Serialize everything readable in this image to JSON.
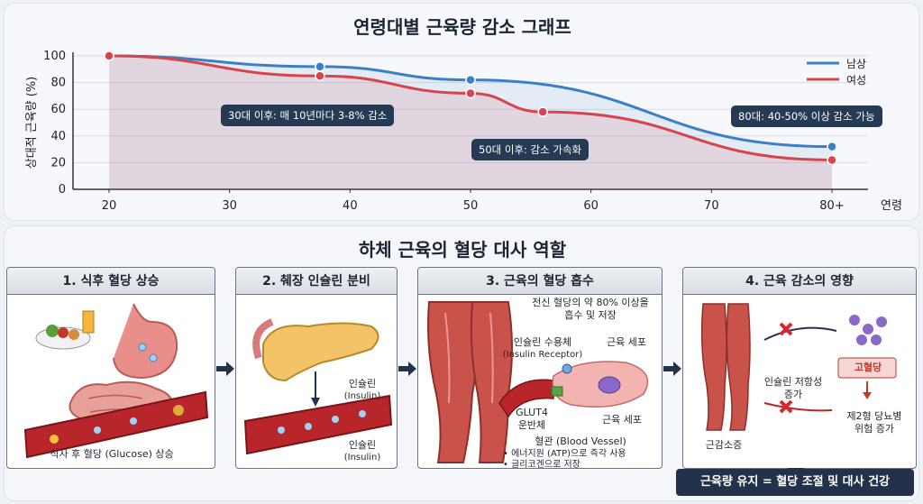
{
  "chart_data": {
    "type": "line",
    "title": "연령대별 근육량 감소 그래프",
    "xlabel": "연령",
    "ylabel": "상대적 근육량 (%)",
    "x_ticks": [
      "20",
      "30",
      "40",
      "50",
      "60",
      "70",
      "80+"
    ],
    "y_ticks": [
      "0",
      "20",
      "40",
      "60",
      "80",
      "100"
    ],
    "ylim": [
      0,
      100
    ],
    "legend_position": "top-right",
    "series": [
      {
        "name": "남상",
        "color": "#3a7fc8",
        "x": [
          20,
          37.5,
          50,
          80
        ],
        "y": [
          100,
          92,
          82,
          32
        ]
      },
      {
        "name": "여성",
        "color": "#d9434b",
        "x": [
          20,
          37.5,
          50,
          56,
          80
        ],
        "y": [
          100,
          85,
          72,
          58,
          22
        ]
      }
    ],
    "annotations": [
      "30대 이후: 매 10년마다 3-8% 감소",
      "50대 이후: 감소 가속화",
      "80대: 40-50% 이상 감소 가능"
    ]
  },
  "section_title": "하체 근육의 혈당 대사 역할",
  "panels": [
    {
      "title": "1. 식후 혈당 상승",
      "caption": "식사 후 혈당 (Glucose) 상승"
    },
    {
      "title": "2. 췌장 인슐린 분비",
      "label_a1": "인슐린",
      "label_a2": "(Insulin)",
      "label_b1": "인슐린",
      "label_b2": "(Insulin)"
    },
    {
      "title": "3. 근육의 혈당 흡수",
      "note1": "전신 혈당의 약 80% 이상을",
      "note2": "흡수 및 저장",
      "receptor": "인슐린 수용체",
      "receptor_en": "(Insulin Receptor)",
      "cell_top": "근육 세포",
      "glut1": "GLUT4",
      "glut2": "운반체",
      "cell_bottom": "근육 세포",
      "vessel": "혈관  (Blood Vessel)",
      "bullet1": "• 에너지원 (ATP)으로 즉각 사용",
      "bullet2": "• 글리코겐으로 저장"
    },
    {
      "title": "4. 근육 감소의 영향",
      "resist1": "인슐린 저항성",
      "resist2": "증가",
      "hyper": "고혈당",
      "risk1": "제2형 당뇨병",
      "risk2": "위험 증가",
      "sarcopenia": "근감소증"
    }
  ],
  "result": "근육량 유지 = 혈당 조절 및 대사 건강"
}
